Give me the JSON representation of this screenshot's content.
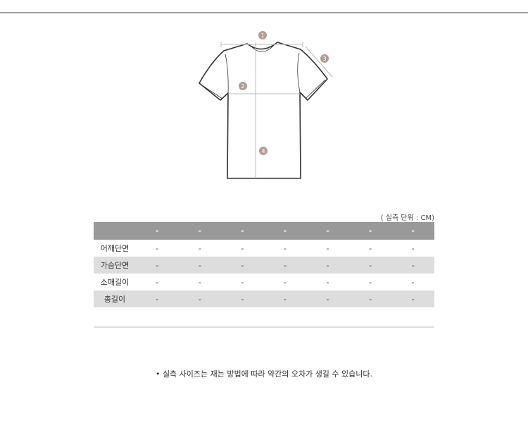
{
  "diagram": {
    "markers": [
      "1",
      "2",
      "3",
      "4"
    ],
    "marker_color": "#b39c96"
  },
  "unit_label": "( 실측 단위 : CM)",
  "table": {
    "header": [
      "",
      "-",
      "-",
      "-",
      "-",
      "-",
      "-",
      "-"
    ],
    "rows": [
      {
        "label": "어깨단면",
        "values": [
          "-",
          "-",
          "-",
          "-",
          "-",
          "-",
          "-"
        ]
      },
      {
        "label": "가슴단면",
        "values": [
          "-",
          "-",
          "-",
          "-",
          "-",
          "-",
          "-"
        ]
      },
      {
        "label": "소매길이",
        "values": [
          "-",
          "-",
          "-",
          "-",
          "-",
          "-",
          "-"
        ]
      },
      {
        "label": "총길이",
        "values": [
          "-",
          "-",
          "-",
          "-",
          "-",
          "-",
          "-"
        ]
      }
    ]
  },
  "note": "• 실측 사이즈는 재는 방법에 따라 약간의 오차가 생길 수 있습니다."
}
